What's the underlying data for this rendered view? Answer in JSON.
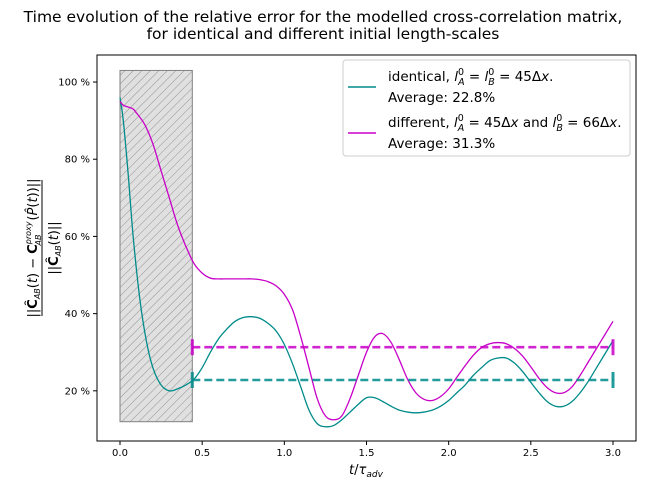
{
  "chart_data": {
    "type": "line",
    "title_lines": [
      "Time evolution of the relative error for the modelled cross-correlation matrix,",
      "for identical and different initial length-scales"
    ],
    "xlabel": "t/τ_adv",
    "ylabel": "||Ĉ_AB(t) − C_AB^proxy(P̂(t))|| / ||Ĉ_AB(t)||",
    "xlim": [
      -0.14,
      3.14
    ],
    "ylim": [
      0.07,
      1.07
    ],
    "x_ticks": [
      0.0,
      0.5,
      1.0,
      1.5,
      2.0,
      2.5,
      3.0
    ],
    "x_tick_labels": [
      "0.0",
      "0.5",
      "1.0",
      "1.5",
      "2.0",
      "2.5",
      "3.0"
    ],
    "y_ticks": [
      0.2,
      0.4,
      0.6,
      0.8,
      1.0
    ],
    "y_tick_labels": [
      "20 %",
      "40 %",
      "60 %",
      "80 %",
      "100 %"
    ],
    "grid": false,
    "legend_position": "top-right",
    "shaded_region": {
      "x_start": 0.0,
      "x_end": 0.44,
      "y_start": 0.12,
      "y_end": 1.03,
      "fill": "#e0e0e0",
      "hatch": "diagonal"
    },
    "series": [
      {
        "name": "identical",
        "color": "#008b8b",
        "legend_line1_prefix": "identical, ",
        "legend_line1_math": "l_A^0 = l_B^0 = 45Δx.",
        "legend_line2": "Average: 22.8%",
        "average": 0.228,
        "average_x_range": [
          0.44,
          3.0
        ],
        "x": [
          0.0,
          0.02,
          0.05,
          0.08,
          0.12,
          0.16,
          0.2,
          0.25,
          0.3,
          0.35,
          0.4,
          0.45,
          0.5,
          0.55,
          0.6,
          0.65,
          0.7,
          0.75,
          0.8,
          0.85,
          0.9,
          0.95,
          1.0,
          1.05,
          1.1,
          1.15,
          1.2,
          1.25,
          1.3,
          1.35,
          1.4,
          1.45,
          1.5,
          1.55,
          1.6,
          1.65,
          1.7,
          1.75,
          1.8,
          1.85,
          1.9,
          1.95,
          2.0,
          2.05,
          2.1,
          2.15,
          2.2,
          2.25,
          2.3,
          2.35,
          2.4,
          2.45,
          2.5,
          2.55,
          2.6,
          2.65,
          2.7,
          2.75,
          2.8,
          2.85,
          2.9,
          2.95,
          3.0
        ],
        "y": [
          0.96,
          0.9,
          0.76,
          0.6,
          0.44,
          0.33,
          0.26,
          0.215,
          0.2,
          0.205,
          0.215,
          0.23,
          0.26,
          0.3,
          0.335,
          0.36,
          0.38,
          0.39,
          0.392,
          0.388,
          0.375,
          0.355,
          0.32,
          0.27,
          0.21,
          0.15,
          0.115,
          0.107,
          0.11,
          0.125,
          0.145,
          0.165,
          0.182,
          0.182,
          0.172,
          0.16,
          0.15,
          0.145,
          0.143,
          0.145,
          0.15,
          0.16,
          0.175,
          0.195,
          0.215,
          0.24,
          0.26,
          0.278,
          0.285,
          0.285,
          0.272,
          0.25,
          0.222,
          0.195,
          0.172,
          0.16,
          0.16,
          0.172,
          0.195,
          0.225,
          0.26,
          0.295,
          0.33
        ]
      },
      {
        "name": "different",
        "color": "#c800c8",
        "legend_line1_prefix": "different, ",
        "legend_line1_math": "l_A^0 = 45Δx and l_B^0 = 66Δx.",
        "legend_line2": "Average: 31.3%",
        "average": 0.313,
        "average_x_range": [
          0.44,
          3.0
        ],
        "x": [
          0.0,
          0.02,
          0.05,
          0.08,
          0.1,
          0.15,
          0.2,
          0.25,
          0.3,
          0.35,
          0.4,
          0.45,
          0.5,
          0.55,
          0.6,
          0.65,
          0.7,
          0.75,
          0.8,
          0.85,
          0.9,
          0.95,
          1.0,
          1.05,
          1.1,
          1.15,
          1.2,
          1.25,
          1.3,
          1.35,
          1.4,
          1.45,
          1.5,
          1.55,
          1.6,
          1.65,
          1.7,
          1.75,
          1.8,
          1.85,
          1.9,
          1.95,
          2.0,
          2.05,
          2.1,
          2.15,
          2.2,
          2.25,
          2.3,
          2.35,
          2.4,
          2.45,
          2.5,
          2.55,
          2.6,
          2.65,
          2.7,
          2.75,
          2.8,
          2.85,
          2.9,
          2.95,
          3.0
        ],
        "y": [
          0.95,
          0.94,
          0.935,
          0.93,
          0.92,
          0.89,
          0.84,
          0.77,
          0.7,
          0.63,
          0.575,
          0.53,
          0.505,
          0.492,
          0.49,
          0.49,
          0.49,
          0.49,
          0.49,
          0.488,
          0.483,
          0.472,
          0.45,
          0.41,
          0.34,
          0.26,
          0.18,
          0.135,
          0.125,
          0.135,
          0.18,
          0.24,
          0.3,
          0.34,
          0.348,
          0.325,
          0.28,
          0.23,
          0.195,
          0.178,
          0.175,
          0.185,
          0.205,
          0.235,
          0.265,
          0.292,
          0.312,
          0.322,
          0.325,
          0.322,
          0.31,
          0.29,
          0.262,
          0.232,
          0.208,
          0.195,
          0.195,
          0.21,
          0.24,
          0.275,
          0.31,
          0.345,
          0.38
        ]
      }
    ]
  }
}
